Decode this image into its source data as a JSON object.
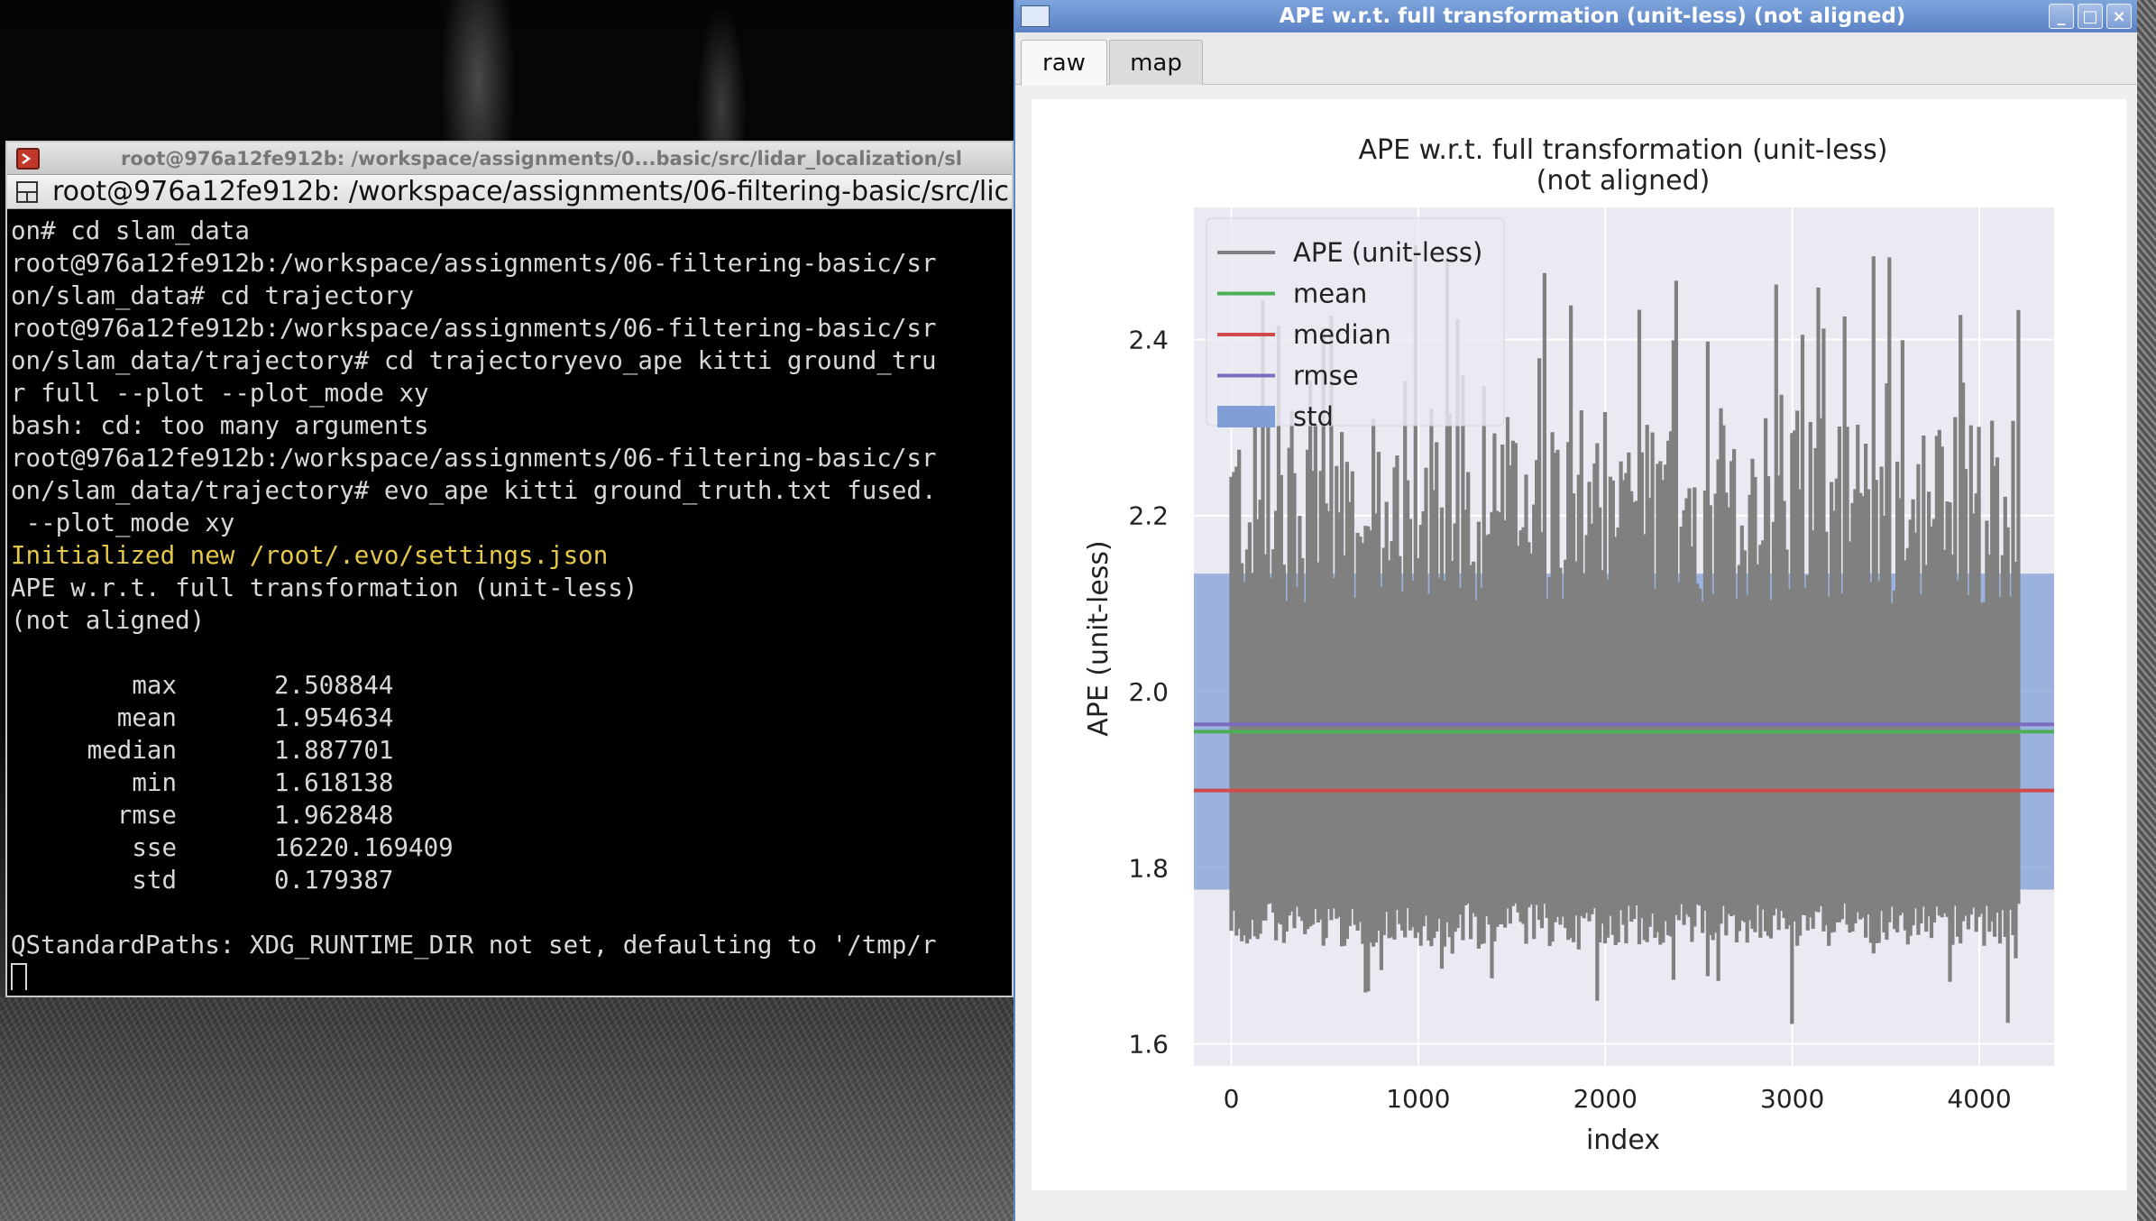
{
  "terminal": {
    "title": "root@976a12fe912b: /workspace/assignments/0...basic/src/lidar_localization/sl",
    "tab_label": "root@976a12fe912b: /workspace/assignments/06-filtering-basic/src/lic",
    "lines": [
      {
        "text": "on# cd slam_data",
        "color": "default"
      },
      {
        "text": "root@976a12fe912b:/workspace/assignments/06-filtering-basic/sr",
        "color": "default"
      },
      {
        "text": "on/slam_data# cd trajectory",
        "color": "default"
      },
      {
        "text": "root@976a12fe912b:/workspace/assignments/06-filtering-basic/sr",
        "color": "default"
      },
      {
        "text": "on/slam_data/trajectory# cd trajectoryevo_ape kitti ground_tru",
        "color": "default"
      },
      {
        "text": "r full --plot --plot_mode xy",
        "color": "default"
      },
      {
        "text": "bash: cd: too many arguments",
        "color": "default"
      },
      {
        "text": "root@976a12fe912b:/workspace/assignments/06-filtering-basic/sr",
        "color": "default"
      },
      {
        "text": "on/slam_data/trajectory# evo_ape kitti ground_truth.txt fused.",
        "color": "default"
      },
      {
        "text": " --plot_mode xy",
        "color": "default"
      },
      {
        "text": "Initialized new /root/.evo/settings.json",
        "color": "yellow"
      },
      {
        "text": "APE w.r.t. full transformation (unit-less)",
        "color": "default"
      },
      {
        "text": "(not aligned)",
        "color": "default"
      }
    ],
    "stats": [
      {
        "name": "max",
        "value": "2.508844"
      },
      {
        "name": "mean",
        "value": "1.954634"
      },
      {
        "name": "median",
        "value": "1.887701"
      },
      {
        "name": "min",
        "value": "1.618138"
      },
      {
        "name": "rmse",
        "value": "1.962848"
      },
      {
        "name": "sse",
        "value": "16220.169409"
      },
      {
        "name": "std",
        "value": "0.179387"
      }
    ],
    "last_line": "QStandardPaths: XDG_RUNTIME_DIR not set, defaulting to '/tmp/r"
  },
  "plot_window": {
    "title": "APE w.r.t. full transformation (unit-less) (not aligned)",
    "tabs": [
      {
        "label": "raw",
        "active": true
      },
      {
        "label": "map",
        "active": false
      }
    ],
    "buttons": {
      "minimize": "_",
      "maximize": "□",
      "close": "×"
    }
  },
  "chart_data": {
    "type": "line",
    "title_line1": "APE w.r.t. full transformation (unit-less)",
    "title_line2": "(not aligned)",
    "xlabel": "index",
    "ylabel": "APE (unit-less)",
    "xlim": [
      -200,
      4400
    ],
    "ylim": [
      1.575,
      2.55
    ],
    "xticks": [
      0,
      1000,
      2000,
      3000,
      4000
    ],
    "yticks": [
      1.6,
      1.8,
      2.0,
      2.2,
      2.4
    ],
    "grid": true,
    "legend_position": "top-left",
    "series_count": 4210,
    "series": [
      {
        "name": "APE (unit-less)",
        "kind": "signal",
        "color": "#808080",
        "range": [
          1.618138,
          2.508844
        ]
      },
      {
        "name": "mean",
        "kind": "hline",
        "value": 1.954634,
        "color": "#4daf55"
      },
      {
        "name": "median",
        "kind": "hline",
        "value": 1.887701,
        "color": "#d14a4a"
      },
      {
        "name": "rmse",
        "kind": "hline",
        "value": 1.962848,
        "color": "#7b6cbf"
      },
      {
        "name": "std",
        "kind": "band",
        "center": 1.954634,
        "halfwidth": 0.179387,
        "color": "#7f9fd6"
      }
    ],
    "background_color": "#eaeaf2"
  }
}
